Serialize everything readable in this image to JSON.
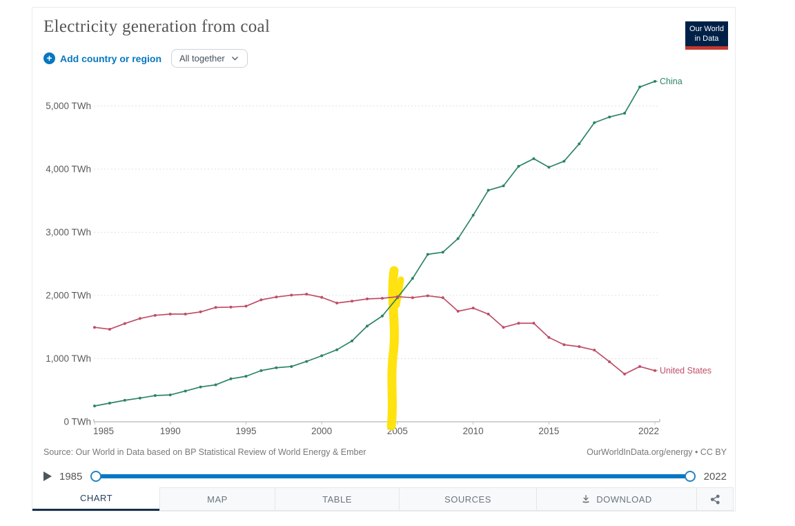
{
  "header": {
    "title": "Electricity generation from coal",
    "add_label": "Add country or region",
    "entity_mode": "All together",
    "logo_line1": "Our World",
    "logo_line2": "in Data"
  },
  "chart_data": {
    "type": "line",
    "title": "Electricity generation from coal",
    "unit": "TWh",
    "xlim": [
      1985,
      2022
    ],
    "ylim": [
      0,
      5500
    ],
    "grid": "dotted-horizontal",
    "legend_position": "end-of-line-labels",
    "x_ticks": [
      1985,
      1990,
      1995,
      2000,
      2005,
      2010,
      2015,
      2022
    ],
    "y_ticks": [
      0,
      1000,
      2000,
      3000,
      4000,
      5000
    ],
    "x": [
      1985,
      1986,
      1987,
      1988,
      1989,
      1990,
      1991,
      1992,
      1993,
      1994,
      1995,
      1996,
      1997,
      1998,
      1999,
      2000,
      2001,
      2002,
      2003,
      2004,
      2005,
      2006,
      2007,
      2008,
      2009,
      2010,
      2011,
      2012,
      2013,
      2014,
      2015,
      2016,
      2017,
      2018,
      2019,
      2020,
      2021,
      2022
    ],
    "series": [
      {
        "name": "China",
        "color": "#2c8465",
        "values": [
          250,
          295,
          340,
          375,
          415,
          425,
          487,
          551,
          585,
          680,
          720,
          810,
          855,
          875,
          955,
          1045,
          1140,
          1280,
          1515,
          1675,
          1965,
          2270,
          2650,
          2685,
          2900,
          3270,
          3665,
          3735,
          4045,
          4165,
          4030,
          4125,
          4400,
          4735,
          4825,
          4885,
          5300,
          5390
        ]
      },
      {
        "name": "United States",
        "color": "#bf4d66",
        "values": [
          1495,
          1465,
          1555,
          1635,
          1685,
          1705,
          1705,
          1740,
          1810,
          1815,
          1830,
          1930,
          1975,
          2005,
          2020,
          1970,
          1880,
          1910,
          1945,
          1955,
          1980,
          1965,
          1995,
          1965,
          1750,
          1800,
          1705,
          1495,
          1560,
          1560,
          1335,
          1220,
          1190,
          1135,
          950,
          755,
          875,
          810
        ]
      }
    ]
  },
  "annotation": {
    "type": "highlighter-stroke",
    "color": "#ffe103",
    "near_year": 2005
  },
  "footer": {
    "source": "Source: Our World in Data based on BP Statistical Review of World Energy & Ember",
    "license": "OurWorldInData.org/energy • CC BY",
    "timeline_start": "1985",
    "timeline_end": "2022"
  },
  "tabs": [
    {
      "label": "CHART",
      "active": true
    },
    {
      "label": "MAP",
      "active": false
    },
    {
      "label": "TABLE",
      "active": false
    },
    {
      "label": "SOURCES",
      "active": false
    },
    {
      "label": "DOWNLOAD",
      "active": false
    }
  ],
  "icons": {
    "plus": "+",
    "chevron_down": "chevron-down",
    "play": "play",
    "download": "download-arrow-tray",
    "share": "share-nodes"
  },
  "colors": {
    "accent_blue": "#0677c0",
    "logo_navy": "#002147",
    "logo_red": "#c4392d",
    "active_tab_navy": "#16304d"
  }
}
